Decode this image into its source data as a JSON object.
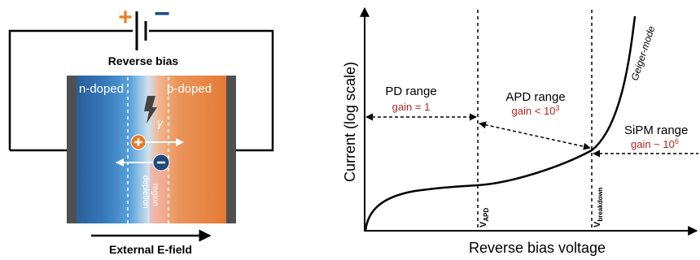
{
  "left_diagram": {
    "battery_plus": "+",
    "battery_minus": "−",
    "bias_label": "Reverse bias",
    "n_label": "n-doped",
    "p_label": "p-doped",
    "depletion_label_line1": "depletion",
    "depletion_label_line2": "region",
    "photon_symbol": "γ",
    "efield_label": "External E-field",
    "colors": {
      "n_region": "#2a5f9a",
      "p_region": "#e77a32",
      "electrode": "#505050",
      "plus_sign": "#e8812b",
      "minus_sign": "#1f4f86",
      "hole": "#e67b28",
      "electron": "#1f4a7c"
    }
  },
  "right_diagram": {
    "y_axis_label": "Current (log scale)",
    "x_axis_label": "Reverse bias voltage",
    "regions": [
      {
        "name": "PD range",
        "gain_prefix": "gain = ",
        "gain_base": "1",
        "gain_exp": ""
      },
      {
        "name": "APD range",
        "gain_prefix": "gain < ",
        "gain_base": "10",
        "gain_exp": "3"
      },
      {
        "name": "SiPM range",
        "gain_prefix": "gain ~ ",
        "gain_base": "10",
        "gain_exp": "6"
      }
    ],
    "mode_label": "Geiger-mode",
    "v_apd": {
      "main": "V",
      "sub": "APD"
    },
    "v_breakdown": {
      "main": "V",
      "sub": "breakdown"
    },
    "colors": {
      "gain_text": "#b3261e"
    }
  }
}
